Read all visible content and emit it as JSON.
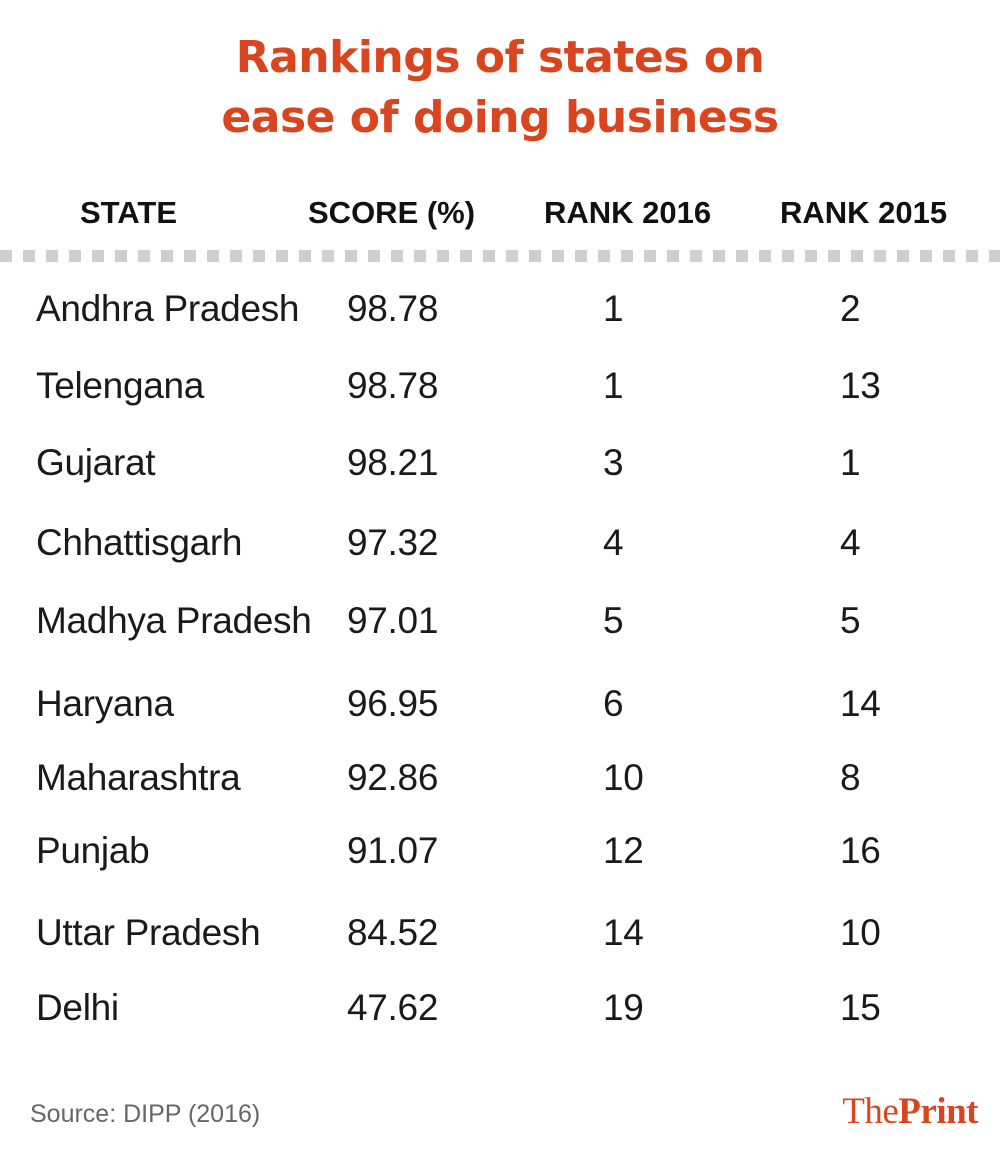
{
  "title": {
    "line1": "Rankings of states on",
    "line2": "ease of doing business"
  },
  "colors": {
    "title": "#d9451f",
    "text": "#1a1a1a",
    "divider": "#cfcfcf",
    "source": "#666666"
  },
  "source": "Source: DIPP (2016)",
  "logo": {
    "part1": "The",
    "part2": "Print"
  },
  "chart_data": {
    "type": "table",
    "columns": [
      "STATE",
      "SCORE (%)",
      "RANK 2016",
      "RANK 2015"
    ],
    "rows": [
      [
        "Andhra Pradesh",
        "98.78",
        "1",
        "2"
      ],
      [
        "Telengana",
        "98.78",
        "1",
        "13"
      ],
      [
        "Gujarat",
        "98.21",
        "3",
        "1"
      ],
      [
        "Chhattisgarh",
        "97.32",
        "4",
        "4"
      ],
      [
        "Madhya Pradesh",
        "97.01",
        "5",
        "5"
      ],
      [
        "Haryana",
        "96.95",
        "6",
        "14"
      ],
      [
        "Maharashtra",
        "92.86",
        "10",
        "8"
      ],
      [
        "Punjab",
        "91.07",
        "12",
        "16"
      ],
      [
        "Uttar Pradesh",
        "84.52",
        "14",
        "10"
      ],
      [
        "Delhi",
        "47.62",
        "19",
        "15"
      ]
    ]
  }
}
